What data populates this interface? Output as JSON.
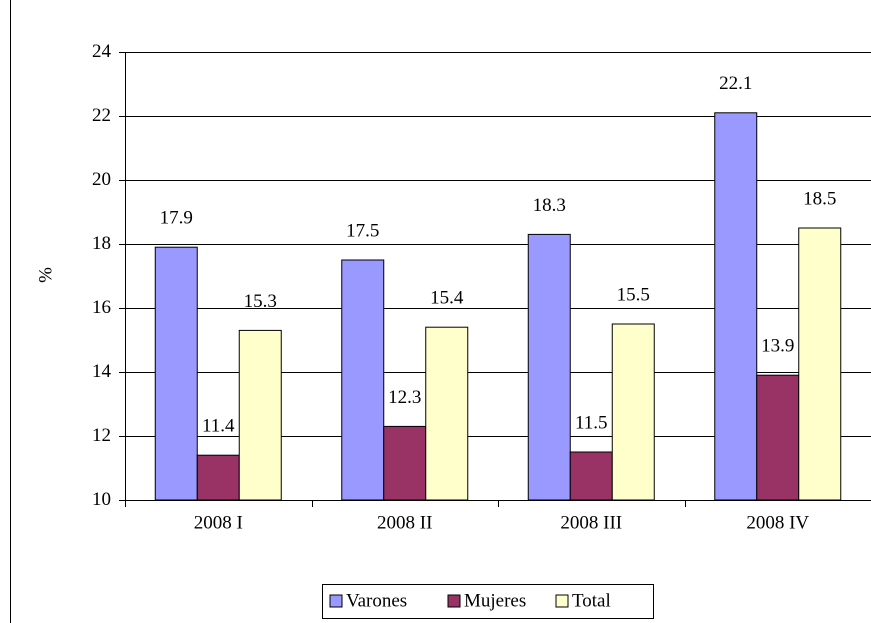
{
  "chart_data": {
    "type": "bar",
    "y_label": "%",
    "categories": [
      "2008 I",
      "2008 II",
      "2008 III",
      "2008 IV"
    ],
    "series": [
      {
        "name": "Varones",
        "color": "#9999ff",
        "values": [
          17.9,
          17.5,
          18.3,
          22.1
        ]
      },
      {
        "name": "Mujeres",
        "color": "#993366",
        "values": [
          11.4,
          12.3,
          11.5,
          13.9
        ]
      },
      {
        "name": "Total",
        "color": "#ffffcc",
        "values": [
          15.3,
          15.4,
          15.5,
          18.5
        ]
      }
    ],
    "ylim": [
      10,
      24
    ],
    "yticks": [
      10,
      12,
      14,
      16,
      18,
      20,
      22,
      24
    ],
    "grid": true,
    "legend": "bottom"
  }
}
